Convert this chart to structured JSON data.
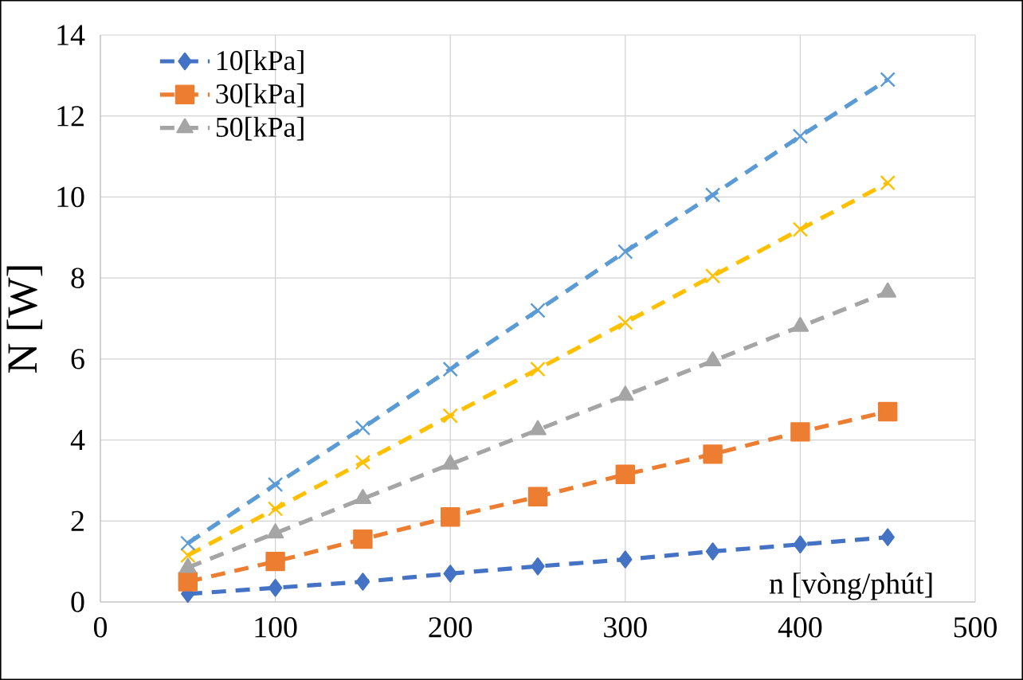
{
  "chart_data": {
    "type": "line",
    "xlabel": "n [vòng/phút]",
    "ylabel": "N [W]",
    "x": [
      50,
      100,
      150,
      200,
      250,
      300,
      350,
      400,
      450
    ],
    "xlim": [
      0,
      500
    ],
    "xticks": [
      0,
      100,
      200,
      300,
      400,
      500
    ],
    "ylim": [
      0,
      14
    ],
    "yticks": [
      0,
      2,
      4,
      6,
      8,
      10,
      12,
      14
    ],
    "grid": true,
    "legend": "top left",
    "line_style": "dashed",
    "series": [
      {
        "name": "10[kPa]",
        "color": "#4472c4",
        "marker": "diamond",
        "values": [
          0.2,
          0.35,
          0.5,
          0.7,
          0.88,
          1.05,
          1.25,
          1.42,
          1.6
        ]
      },
      {
        "name": "30[kPa]",
        "color": "#ed7d31",
        "marker": "square",
        "values": [
          0.5,
          1.0,
          1.55,
          2.1,
          2.6,
          3.15,
          3.65,
          4.2,
          4.7
        ]
      },
      {
        "name": "50[kPa]",
        "color": "#a5a5a5",
        "marker": "triangle",
        "values": [
          0.85,
          1.7,
          2.55,
          3.4,
          4.25,
          5.1,
          5.95,
          6.8,
          7.65
        ]
      },
      {
        "color": "#ffc000",
        "marker": "cross",
        "values": [
          1.15,
          2.3,
          3.45,
          4.6,
          5.75,
          6.9,
          8.05,
          9.2,
          10.35
        ]
      },
      {
        "color": "#5b9bd5",
        "marker": "cross",
        "values": [
          1.45,
          2.9,
          4.3,
          5.75,
          7.2,
          8.65,
          10.05,
          11.5,
          12.9
        ]
      }
    ]
  }
}
